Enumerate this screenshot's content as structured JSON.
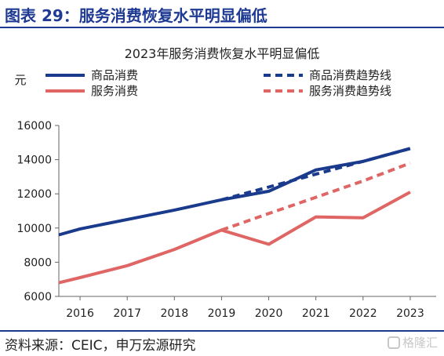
{
  "figure": {
    "title": "图表 29：服务消费恢复水平明显偏低",
    "source": "资料来源：CEIC，申万宏源研究",
    "watermark": "格隆汇"
  },
  "chart_data": {
    "type": "line",
    "title": "2023年服务消费恢复水平明显偏低",
    "ylabel": "元",
    "xlabel": "",
    "x": [
      2016,
      2017,
      2018,
      2019,
      2020,
      2021,
      2022,
      2023
    ],
    "x_ticks": [
      "2016",
      "2017",
      "2018",
      "2019",
      "2020",
      "2021",
      "2022",
      "2023"
    ],
    "xlim": [
      2015.55,
      2023.55
    ],
    "ylim": [
      6000,
      16000
    ],
    "y_ticks": [
      "6000",
      "8000",
      "10000",
      "12000",
      "14000",
      "16000"
    ],
    "grid": false,
    "legend_placement": "top",
    "series": [
      {
        "name": "商品消费",
        "color": "#1a3a8c",
        "style": "solid",
        "points": [
          [
            2015.55,
            9600
          ],
          [
            2016,
            9950
          ],
          [
            2017,
            10500
          ],
          [
            2018,
            11050
          ],
          [
            2019,
            11650
          ],
          [
            2020,
            12150
          ],
          [
            2021,
            13400
          ],
          [
            2022,
            13900
          ],
          [
            2023,
            14650
          ]
        ]
      },
      {
        "name": "商品消费趋势线",
        "color": "#1a3a8c",
        "style": "dashed",
        "points": [
          [
            2019,
            11650
          ],
          [
            2020,
            12400
          ],
          [
            2021,
            13150
          ],
          [
            2022,
            13900
          ],
          [
            2023,
            14650
          ]
        ]
      },
      {
        "name": "服务消费",
        "color": "#e06666",
        "style": "solid",
        "points": [
          [
            2015.55,
            6800
          ],
          [
            2016,
            7100
          ],
          [
            2017,
            7800
          ],
          [
            2018,
            8750
          ],
          [
            2019,
            9880
          ],
          [
            2020,
            9050
          ],
          [
            2021,
            10650
          ],
          [
            2022,
            10600
          ],
          [
            2023,
            12100
          ]
        ]
      },
      {
        "name": "服务消费趋势线",
        "color": "#e06666",
        "style": "dashed",
        "points": [
          [
            2019,
            9880
          ],
          [
            2020,
            10850
          ],
          [
            2021,
            11800
          ],
          [
            2022,
            12750
          ],
          [
            2023,
            13800
          ]
        ]
      }
    ]
  }
}
